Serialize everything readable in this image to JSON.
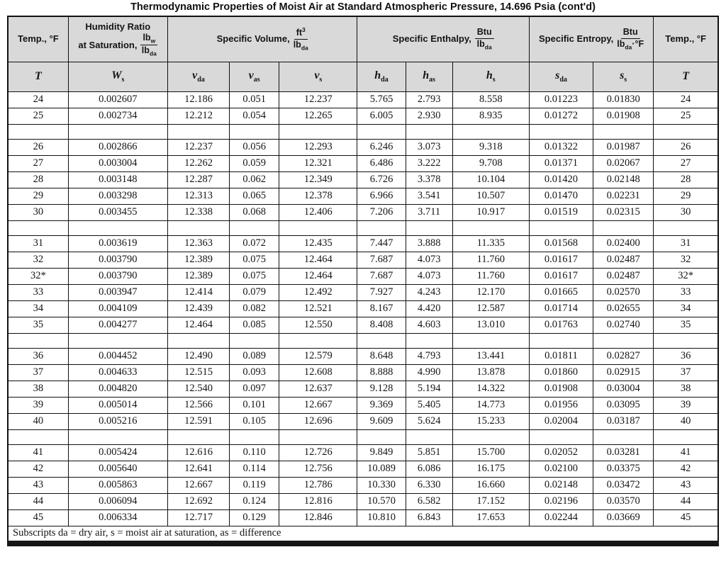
{
  "title": "Thermodynamic Properties of Moist Air at Standard Atmospheric Pressure, 14.696 Psia (cont'd)",
  "colors": {
    "header_bg": "#d9d9d9",
    "border": "#111111"
  },
  "table": {
    "header": {
      "temp_left": "Temp., °F",
      "temp_right": "Temp., °F",
      "humidity": {
        "line1": "Humidity Ratio",
        "line2": "at Saturation,",
        "frac": {
          "num_main": "lb",
          "num_sub": "w",
          "den_main": "lb",
          "den_sub": "da"
        }
      },
      "volume": {
        "label": "Specific Volume,",
        "frac": {
          "num_main": "ft",
          "num_sup": "3",
          "den_main": "lb",
          "den_sub": "da"
        }
      },
      "enthalpy": {
        "label": "Specific Enthalpy,",
        "frac": {
          "num_main": "Btu",
          "den_main": "lb",
          "den_sub": "da"
        }
      },
      "entropy": {
        "label": "Specific Entropy,",
        "frac": {
          "num_main": "Btu",
          "den_main": "lb",
          "den_sub": "da",
          "den_after": "·°F"
        }
      }
    },
    "subheaders": [
      {
        "base": "T",
        "sub": ""
      },
      {
        "base": "W",
        "sub": "s"
      },
      {
        "base": "v",
        "sub": "da"
      },
      {
        "base": "v",
        "sub": "as"
      },
      {
        "base": "v",
        "sub": "s"
      },
      {
        "base": "h",
        "sub": "da"
      },
      {
        "base": "h",
        "sub": "as"
      },
      {
        "base": "h",
        "sub": "s"
      },
      {
        "base": "s",
        "sub": "da"
      },
      {
        "base": "s",
        "sub": "s"
      },
      {
        "base": "T",
        "sub": ""
      }
    ],
    "rows": [
      [
        "24",
        "0.002607",
        "12.186",
        "0.051",
        "12.237",
        "5.765",
        "2.793",
        "8.558",
        "0.01223",
        "0.01830",
        "24"
      ],
      [
        "25",
        "0.002734",
        "12.212",
        "0.054",
        "12.265",
        "6.005",
        "2.930",
        "8.935",
        "0.01272",
        "0.01908",
        "25"
      ],
      [],
      [
        "26",
        "0.002866",
        "12.237",
        "0.056",
        "12.293",
        "6.246",
        "3.073",
        "9.318",
        "0.01322",
        "0.01987",
        "26"
      ],
      [
        "27",
        "0.003004",
        "12.262",
        "0.059",
        "12.321",
        "6.486",
        "3.222",
        "9.708",
        "0.01371",
        "0.02067",
        "27"
      ],
      [
        "28",
        "0.003148",
        "12.287",
        "0.062",
        "12.349",
        "6.726",
        "3.378",
        "10.104",
        "0.01420",
        "0.02148",
        "28"
      ],
      [
        "29",
        "0.003298",
        "12.313",
        "0.065",
        "12.378",
        "6.966",
        "3.541",
        "10.507",
        "0.01470",
        "0.02231",
        "29"
      ],
      [
        "30",
        "0.003455",
        "12.338",
        "0.068",
        "12.406",
        "7.206",
        "3.711",
        "10.917",
        "0.01519",
        "0.02315",
        "30"
      ],
      [],
      [
        "31",
        "0.003619",
        "12.363",
        "0.072",
        "12.435",
        "7.447",
        "3.888",
        "11.335",
        "0.01568",
        "0.02400",
        "31"
      ],
      [
        "32",
        "0.003790",
        "12.389",
        "0.075",
        "12.464",
        "7.687",
        "4.073",
        "11.760",
        "0.01617",
        "0.02487",
        "32"
      ],
      [
        "32*",
        "0.003790",
        "12.389",
        "0.075",
        "12.464",
        "7.687",
        "4.073",
        "11.760",
        "0.01617",
        "0.02487",
        "32*"
      ],
      [
        "33",
        "0.003947",
        "12.414",
        "0.079",
        "12.492",
        "7.927",
        "4.243",
        "12.170",
        "0.01665",
        "0.02570",
        "33"
      ],
      [
        "34",
        "0.004109",
        "12.439",
        "0.082",
        "12.521",
        "8.167",
        "4.420",
        "12.587",
        "0.01714",
        "0.02655",
        "34"
      ],
      [
        "35",
        "0.004277",
        "12.464",
        "0.085",
        "12.550",
        "8.408",
        "4.603",
        "13.010",
        "0.01763",
        "0.02740",
        "35"
      ],
      [],
      [
        "36",
        "0.004452",
        "12.490",
        "0.089",
        "12.579",
        "8.648",
        "4.793",
        "13.441",
        "0.01811",
        "0.02827",
        "36"
      ],
      [
        "37",
        "0.004633",
        "12.515",
        "0.093",
        "12.608",
        "8.888",
        "4.990",
        "13.878",
        "0.01860",
        "0.02915",
        "37"
      ],
      [
        "38",
        "0.004820",
        "12.540",
        "0.097",
        "12.637",
        "9.128",
        "5.194",
        "14.322",
        "0.01908",
        "0.03004",
        "38"
      ],
      [
        "39",
        "0.005014",
        "12.566",
        "0.101",
        "12.667",
        "9.369",
        "5.405",
        "14.773",
        "0.01956",
        "0.03095",
        "39"
      ],
      [
        "40",
        "0.005216",
        "12.591",
        "0.105",
        "12.696",
        "9.609",
        "5.624",
        "15.233",
        "0.02004",
        "0.03187",
        "40"
      ],
      [],
      [
        "41",
        "0.005424",
        "12.616",
        "0.110",
        "12.726",
        "9.849",
        "5.851",
        "15.700",
        "0.02052",
        "0.03281",
        "41"
      ],
      [
        "42",
        "0.005640",
        "12.641",
        "0.114",
        "12.756",
        "10.089",
        "6.086",
        "16.175",
        "0.02100",
        "0.03375",
        "42"
      ],
      [
        "43",
        "0.005863",
        "12.667",
        "0.119",
        "12.786",
        "10.330",
        "6.330",
        "16.660",
        "0.02148",
        "0.03472",
        "43"
      ],
      [
        "44",
        "0.006094",
        "12.692",
        "0.124",
        "12.816",
        "10.570",
        "6.582",
        "17.152",
        "0.02196",
        "0.03570",
        "44"
      ],
      [
        "45",
        "0.006334",
        "12.717",
        "0.129",
        "12.846",
        "10.810",
        "6.843",
        "17.653",
        "0.02244",
        "0.03669",
        "45"
      ]
    ],
    "footnote": "Subscripts da = dry air, s = moist air at saturation, as = difference"
  }
}
